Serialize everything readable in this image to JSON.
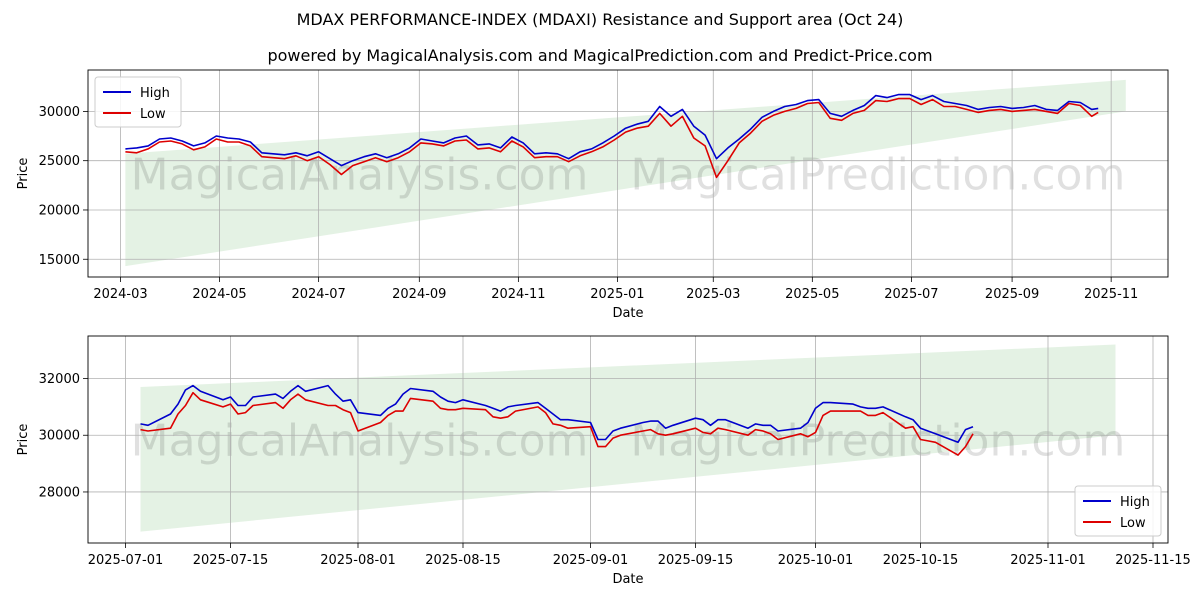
{
  "title": "MDAX PERFORMANCE-INDEX (MDAXI) Resistance and Support area (Oct 24)",
  "subtitle": "powered by MagicalAnalysis.com and MagicalPrediction.com and Predict-Price.com",
  "watermark": "MagicalAnalysis.com   MagicalPrediction.com",
  "colors": {
    "high": "#0000cc",
    "low": "#dd0000",
    "band": "#d8ecd8",
    "grid": "#b0b0b0"
  },
  "chart_data": [
    {
      "type": "line",
      "xlabel": "Date",
      "ylabel": "Price",
      "legend": "top-left",
      "grid": true,
      "x_ticks": [
        "2024-03",
        "2024-05",
        "2024-07",
        "2024-09",
        "2024-11",
        "2025-01",
        "2025-03",
        "2025-05",
        "2025-07",
        "2025-09",
        "2025-11"
      ],
      "y_ticks": [
        15000,
        20000,
        25000,
        30000
      ],
      "xlim": [
        "2024-02-10",
        "2025-12-06"
      ],
      "ylim": [
        13200,
        34200
      ],
      "band": {
        "start": "2024-03-04",
        "end": "2025-11-10",
        "upper": [
          25700,
          33200
        ],
        "lower": [
          14300,
          30000
        ]
      },
      "dates": [
        "2024-03-04",
        "2024-03-11",
        "2024-03-18",
        "2024-03-25",
        "2024-04-01",
        "2024-04-08",
        "2024-04-15",
        "2024-04-22",
        "2024-04-29",
        "2024-05-06",
        "2024-05-13",
        "2024-05-20",
        "2024-05-27",
        "2024-06-03",
        "2024-06-10",
        "2024-06-17",
        "2024-06-24",
        "2024-07-01",
        "2024-07-08",
        "2024-07-15",
        "2024-07-22",
        "2024-07-29",
        "2024-08-05",
        "2024-08-12",
        "2024-08-19",
        "2024-08-26",
        "2024-09-02",
        "2024-09-09",
        "2024-09-16",
        "2024-09-23",
        "2024-09-30",
        "2024-10-07",
        "2024-10-14",
        "2024-10-21",
        "2024-10-28",
        "2024-11-04",
        "2024-11-11",
        "2024-11-18",
        "2024-11-25",
        "2024-12-02",
        "2024-12-09",
        "2024-12-16",
        "2024-12-23",
        "2024-12-30",
        "2025-01-06",
        "2025-01-13",
        "2025-01-20",
        "2025-01-27",
        "2025-02-03",
        "2025-02-10",
        "2025-02-17",
        "2025-02-24",
        "2025-03-03",
        "2025-03-10",
        "2025-03-17",
        "2025-03-24",
        "2025-03-31",
        "2025-04-07",
        "2025-04-14",
        "2025-04-21",
        "2025-04-28",
        "2025-05-05",
        "2025-05-12",
        "2025-05-19",
        "2025-05-26",
        "2025-06-02",
        "2025-06-09",
        "2025-06-16",
        "2025-06-23",
        "2025-06-30",
        "2025-07-07",
        "2025-07-14",
        "2025-07-21",
        "2025-07-28",
        "2025-08-04",
        "2025-08-11",
        "2025-08-18",
        "2025-08-25",
        "2025-09-01",
        "2025-09-08",
        "2025-09-15",
        "2025-09-22",
        "2025-09-29",
        "2025-10-06",
        "2025-10-13",
        "2025-10-20",
        "2025-10-24"
      ],
      "series": [
        {
          "name": "High",
          "values": [
            26200,
            26300,
            26500,
            27200,
            27300,
            27000,
            26500,
            26800,
            27500,
            27300,
            27200,
            26900,
            25800,
            25700,
            25600,
            25800,
            25500,
            25900,
            25200,
            24500,
            25000,
            25400,
            25700,
            25300,
            25700,
            26300,
            27200,
            27000,
            26800,
            27300,
            27500,
            26600,
            26700,
            26300,
            27400,
            26800,
            25700,
            25800,
            25700,
            25200,
            25900,
            26200,
            26800,
            27500,
            28300,
            28700,
            29000,
            30500,
            29500,
            30200,
            28500,
            27600,
            25200,
            26300,
            27200,
            28200,
            29400,
            30000,
            30500,
            30700,
            31100,
            31200,
            29800,
            29500,
            30100,
            30600,
            31600,
            31400,
            31700,
            31700,
            31200,
            31600,
            31000,
            30800,
            30600,
            30200,
            30400,
            30500,
            30300,
            30400,
            30600,
            30200,
            30100,
            31000,
            30900,
            30200,
            30300
          ]
        },
        {
          "name": "Low",
          "values": [
            25900,
            25800,
            26200,
            26900,
            27000,
            26700,
            26100,
            26400,
            27200,
            26900,
            26900,
            26500,
            25400,
            25300,
            25200,
            25500,
            25000,
            25400,
            24600,
            23600,
            24500,
            24900,
            25300,
            24900,
            25300,
            25900,
            26800,
            26700,
            26500,
            27000,
            27100,
            26200,
            26300,
            25900,
            27000,
            26400,
            25300,
            25400,
            25400,
            24900,
            25500,
            25900,
            26400,
            27100,
            27900,
            28300,
            28500,
            29800,
            28500,
            29500,
            27300,
            26500,
            23300,
            25000,
            26800,
            27800,
            29000,
            29600,
            30000,
            30300,
            30800,
            30900,
            29300,
            29100,
            29800,
            30100,
            31100,
            31000,
            31300,
            31300,
            30700,
            31200,
            30500,
            30500,
            30200,
            29900,
            30100,
            30200,
            30000,
            30100,
            30200,
            30000,
            29800,
            30800,
            30600,
            29500,
            29900
          ]
        }
      ]
    },
    {
      "type": "line",
      "xlabel": "Date",
      "ylabel": "Price",
      "legend": "bottom-right",
      "grid": true,
      "x_ticks": [
        "2025-07-01",
        "2025-07-15",
        "2025-08-01",
        "2025-08-15",
        "2025-09-01",
        "2025-09-15",
        "2025-10-01",
        "2025-10-15",
        "2025-11-01",
        "2025-11-15"
      ],
      "y_ticks": [
        28000,
        30000,
        32000
      ],
      "xlim": [
        "2025-06-26",
        "2025-11-17"
      ],
      "ylim": [
        26200,
        33500
      ],
      "band": {
        "start": "2025-07-03",
        "end": "2025-11-10",
        "upper": [
          31700,
          33200
        ],
        "lower": [
          26600,
          30000
        ]
      },
      "dates": [
        "2025-07-03",
        "2025-07-04",
        "2025-07-07",
        "2025-07-08",
        "2025-07-09",
        "2025-07-10",
        "2025-07-11",
        "2025-07-14",
        "2025-07-15",
        "2025-07-16",
        "2025-07-17",
        "2025-07-18",
        "2025-07-21",
        "2025-07-22",
        "2025-07-23",
        "2025-07-24",
        "2025-07-25",
        "2025-07-28",
        "2025-07-29",
        "2025-07-30",
        "2025-07-31",
        "2025-08-01",
        "2025-08-04",
        "2025-08-05",
        "2025-08-06",
        "2025-08-07",
        "2025-08-08",
        "2025-08-11",
        "2025-08-12",
        "2025-08-13",
        "2025-08-14",
        "2025-08-15",
        "2025-08-18",
        "2025-08-19",
        "2025-08-20",
        "2025-08-21",
        "2025-08-22",
        "2025-08-25",
        "2025-08-26",
        "2025-08-27",
        "2025-08-28",
        "2025-08-29",
        "2025-09-01",
        "2025-09-02",
        "2025-09-03",
        "2025-09-04",
        "2025-09-05",
        "2025-09-08",
        "2025-09-09",
        "2025-09-10",
        "2025-09-11",
        "2025-09-12",
        "2025-09-15",
        "2025-09-16",
        "2025-09-17",
        "2025-09-18",
        "2025-09-19",
        "2025-09-22",
        "2025-09-23",
        "2025-09-24",
        "2025-09-25",
        "2025-09-26",
        "2025-09-29",
        "2025-09-30",
        "2025-10-01",
        "2025-10-02",
        "2025-10-03",
        "2025-10-06",
        "2025-10-07",
        "2025-10-08",
        "2025-10-09",
        "2025-10-10",
        "2025-10-13",
        "2025-10-14",
        "2025-10-15",
        "2025-10-16",
        "2025-10-17",
        "2025-10-20",
        "2025-10-21",
        "2025-10-22"
      ],
      "series": [
        {
          "name": "High",
          "values": [
            30400,
            30350,
            30750,
            31100,
            31600,
            31750,
            31550,
            31250,
            31350,
            31050,
            31050,
            31350,
            31450,
            31300,
            31550,
            31750,
            31550,
            31750,
            31450,
            31200,
            31250,
            30800,
            30700,
            30950,
            31100,
            31450,
            31650,
            31550,
            31350,
            31200,
            31150,
            31250,
            31050,
            30950,
            30850,
            31000,
            31050,
            31150,
            30950,
            30750,
            30550,
            30550,
            30450,
            29850,
            29850,
            30150,
            30250,
            30450,
            30500,
            30500,
            30250,
            30350,
            30600,
            30550,
            30350,
            30550,
            30550,
            30250,
            30400,
            30350,
            30350,
            30150,
            30250,
            30450,
            30950,
            31150,
            31150,
            31100,
            31000,
            30950,
            30950,
            31000,
            30650,
            30550,
            30250,
            30150,
            30050,
            29750,
            30200,
            30300
          ]
        },
        {
          "name": "Low",
          "values": [
            30200,
            30150,
            30250,
            30750,
            31050,
            31500,
            31250,
            31000,
            31100,
            30750,
            30800,
            31050,
            31150,
            30950,
            31250,
            31450,
            31250,
            31050,
            31050,
            30900,
            30800,
            30150,
            30450,
            30700,
            30850,
            30850,
            31300,
            31200,
            30950,
            30900,
            30900,
            30950,
            30900,
            30650,
            30600,
            30650,
            30850,
            31000,
            30800,
            30400,
            30350,
            30250,
            30300,
            29600,
            29600,
            29900,
            30000,
            30150,
            30200,
            30050,
            30000,
            30050,
            30250,
            30100,
            30050,
            30250,
            30200,
            30000,
            30200,
            30150,
            30050,
            29850,
            30050,
            29950,
            30100,
            30700,
            30850,
            30850,
            30850,
            30700,
            30700,
            30800,
            30250,
            30300,
            29850,
            29800,
            29750,
            29300,
            29600,
            30050
          ]
        }
      ]
    }
  ]
}
